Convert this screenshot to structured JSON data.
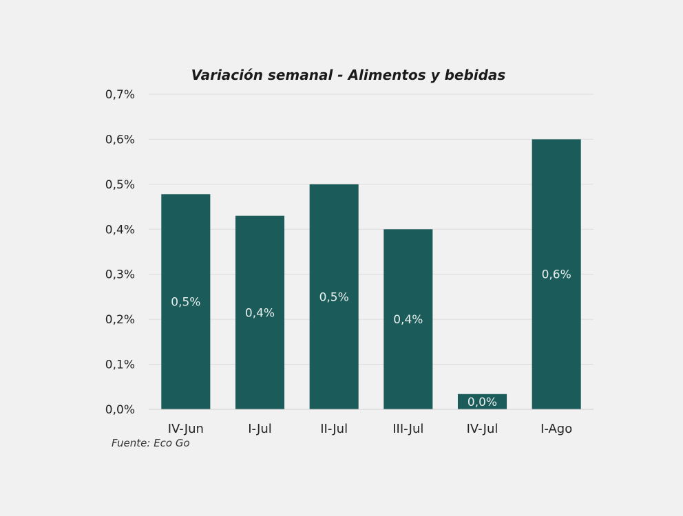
{
  "chart_data": {
    "type": "bar",
    "title": "Variación semanal - Alimentos y bebidas",
    "categories": [
      "IV-Jun",
      "I-Jul",
      "II-Jul",
      "III-Jul",
      "IV-Jul",
      "I-Ago"
    ],
    "values": [
      0.478,
      0.43,
      0.5,
      0.4,
      0.034,
      0.6
    ],
    "data_labels": [
      "0,5%",
      "0,4%",
      "0,5%",
      "0,4%",
      "0,0%",
      "0,6%"
    ],
    "yticks": [
      "0,0%",
      "0,1%",
      "0,2%",
      "0,3%",
      "0,4%",
      "0,5%",
      "0,6%",
      "0,7%"
    ],
    "ylim": [
      0,
      0.7
    ],
    "grid": true,
    "legend": "none",
    "bar_color": "#1b5c5a",
    "source": "Fuente: Eco Go"
  }
}
